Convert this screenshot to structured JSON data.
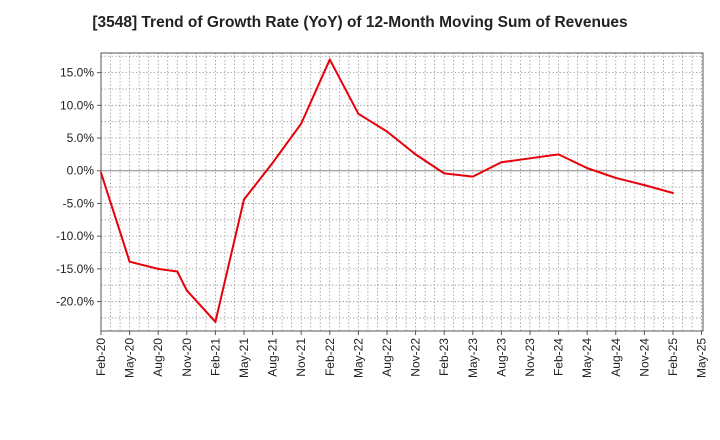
{
  "chart_data": {
    "type": "line",
    "title": "[3548]  Trend of Growth Rate (YoY) of 12-Month Moving Sum of Revenues",
    "xlabel": "",
    "ylabel": "",
    "x_ticks": [
      "Feb-20",
      "May-20",
      "Aug-20",
      "Nov-20",
      "Feb-21",
      "May-21",
      "Aug-21",
      "Nov-21",
      "Feb-22",
      "May-22",
      "Aug-22",
      "Nov-22",
      "Feb-23",
      "May-23",
      "Aug-23",
      "Nov-23",
      "Feb-24",
      "May-24",
      "Aug-24",
      "Nov-24",
      "Feb-25",
      "May-25"
    ],
    "y_ticks": [
      "15.0%",
      "10.0%",
      "5.0%",
      "0.0%",
      "-5.0%",
      "-10.0%",
      "-15.0%",
      "-20.0%"
    ],
    "y_tick_values": [
      15,
      10,
      5,
      0,
      -5,
      -10,
      -15,
      -20
    ],
    "ylim": [
      -24.5,
      18
    ],
    "grid": true,
    "series_color": "#e8000b",
    "series": [
      {
        "x": [
          "Feb-20",
          "May-20",
          "Aug-20",
          "Oct-20",
          "Nov-20",
          "Feb-21",
          "May-21",
          "Aug-21",
          "Nov-21",
          "Feb-22",
          "May-22",
          "Aug-22",
          "Nov-22",
          "Feb-23",
          "May-23",
          "Aug-23",
          "Nov-23",
          "Feb-24",
          "May-24",
          "Aug-24",
          "Nov-24",
          "Feb-25"
        ],
        "values": [
          -0.3,
          -13.9,
          -15.0,
          -15.4,
          -18.3,
          -23.1,
          -4.4,
          1.2,
          7.2,
          17.0,
          8.7,
          6.0,
          2.5,
          -0.4,
          -0.9,
          1.3,
          1.9,
          2.5,
          0.4,
          -1.1,
          -2.2,
          -3.4
        ]
      }
    ]
  }
}
